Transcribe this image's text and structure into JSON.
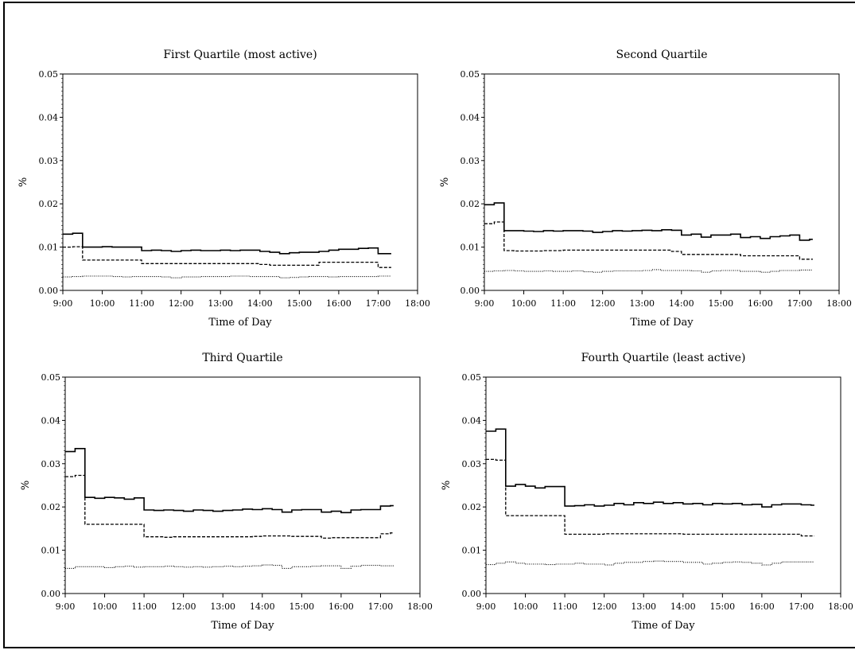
{
  "chart_data": [
    {
      "type": "line",
      "title": "First Quartile (most active)",
      "xlabel": "Time of Day",
      "ylabel": "%",
      "xlim": [
        "9:00",
        "18:00"
      ],
      "ylim": [
        0,
        0.05
      ],
      "x_ticks": [
        "9:00",
        "10:00",
        "11:00",
        "12:00",
        "13:00",
        "14:00",
        "15:00",
        "16:00",
        "17:00",
        "18:00"
      ],
      "y_ticks": [
        "0.00",
        "0.01",
        "0.02",
        "0.03",
        "0.04",
        "0.05"
      ],
      "x_values_hours": [
        9.0,
        9.25,
        9.5,
        9.75,
        10.0,
        10.25,
        10.5,
        10.75,
        11.0,
        11.25,
        11.5,
        11.75,
        12.0,
        12.25,
        12.5,
        12.75,
        13.0,
        13.25,
        13.5,
        13.75,
        14.0,
        14.25,
        14.5,
        14.75,
        15.0,
        15.25,
        15.5,
        15.75,
        16.0,
        16.25,
        16.5,
        16.75,
        17.0,
        17.25
      ],
      "series": [
        {
          "style": "solid",
          "values": [
            0.013,
            0.0132,
            0.01,
            0.01,
            0.0101,
            0.01,
            0.01,
            0.01,
            0.0092,
            0.0093,
            0.0092,
            0.009,
            0.0092,
            0.0093,
            0.0092,
            0.0092,
            0.0093,
            0.0092,
            0.0093,
            0.0093,
            0.009,
            0.0088,
            0.0085,
            0.0087,
            0.0088,
            0.0088,
            0.009,
            0.0093,
            0.0095,
            0.0095,
            0.0097,
            0.0098,
            0.0085,
            0.0085
          ]
        },
        {
          "style": "dashed",
          "values": [
            0.01,
            0.0101,
            0.007,
            0.007,
            0.007,
            0.007,
            0.007,
            0.007,
            0.0062,
            0.0062,
            0.0062,
            0.0062,
            0.0062,
            0.0062,
            0.0062,
            0.0062,
            0.0062,
            0.0062,
            0.0062,
            0.0062,
            0.006,
            0.0058,
            0.0058,
            0.0058,
            0.0058,
            0.0058,
            0.0065,
            0.0065,
            0.0065,
            0.0065,
            0.0065,
            0.0065,
            0.0053,
            0.0053
          ]
        },
        {
          "style": "dotted",
          "values": [
            0.0031,
            0.0032,
            0.0033,
            0.0033,
            0.0033,
            0.0032,
            0.0031,
            0.0032,
            0.0032,
            0.0032,
            0.0031,
            0.0029,
            0.0031,
            0.0031,
            0.0032,
            0.0032,
            0.0032,
            0.0033,
            0.0033,
            0.0032,
            0.0032,
            0.0032,
            0.0029,
            0.003,
            0.0031,
            0.0032,
            0.0032,
            0.0031,
            0.0032,
            0.0032,
            0.0032,
            0.0032,
            0.0033,
            0.0033
          ]
        }
      ]
    },
    {
      "type": "line",
      "title": "Second Quartile",
      "xlabel": "Time of Day",
      "ylabel": "%",
      "xlim": [
        "9:00",
        "18:00"
      ],
      "ylim": [
        0,
        0.05
      ],
      "x_ticks": [
        "9:00",
        "10:00",
        "11:00",
        "12:00",
        "13:00",
        "14:00",
        "15:00",
        "16:00",
        "17:00",
        "18:00"
      ],
      "y_ticks": [
        "0.00",
        "0.01",
        "0.02",
        "0.03",
        "0.04",
        "0.05"
      ],
      "x_values_hours": [
        9.0,
        9.25,
        9.5,
        9.75,
        10.0,
        10.25,
        10.5,
        10.75,
        11.0,
        11.25,
        11.5,
        11.75,
        12.0,
        12.25,
        12.5,
        12.75,
        13.0,
        13.25,
        13.5,
        13.75,
        14.0,
        14.25,
        14.5,
        14.75,
        15.0,
        15.25,
        15.5,
        15.75,
        16.0,
        16.25,
        16.5,
        16.75,
        17.0,
        17.25
      ],
      "series": [
        {
          "style": "solid",
          "values": [
            0.0198,
            0.0202,
            0.0138,
            0.0138,
            0.0137,
            0.0136,
            0.0138,
            0.0137,
            0.0138,
            0.0138,
            0.0137,
            0.0134,
            0.0136,
            0.0138,
            0.0137,
            0.0138,
            0.0139,
            0.0138,
            0.014,
            0.0139,
            0.0128,
            0.013,
            0.0123,
            0.0128,
            0.0128,
            0.013,
            0.0122,
            0.0124,
            0.012,
            0.0124,
            0.0126,
            0.0128,
            0.0116,
            0.0118
          ]
        },
        {
          "style": "dashed",
          "values": [
            0.0154,
            0.0158,
            0.0092,
            0.0091,
            0.0091,
            0.0091,
            0.0092,
            0.0092,
            0.0093,
            0.0093,
            0.0093,
            0.0093,
            0.0093,
            0.0093,
            0.0093,
            0.0093,
            0.0093,
            0.0093,
            0.0093,
            0.009,
            0.0083,
            0.0083,
            0.0083,
            0.0083,
            0.0083,
            0.0083,
            0.008,
            0.008,
            0.008,
            0.008,
            0.008,
            0.008,
            0.0072,
            0.0072
          ]
        },
        {
          "style": "dotted",
          "values": [
            0.0044,
            0.0045,
            0.0046,
            0.0045,
            0.0044,
            0.0044,
            0.0045,
            0.0044,
            0.0044,
            0.0045,
            0.0043,
            0.0042,
            0.0044,
            0.0045,
            0.0045,
            0.0045,
            0.0046,
            0.0048,
            0.0046,
            0.0046,
            0.0046,
            0.0045,
            0.0042,
            0.0045,
            0.0046,
            0.0046,
            0.0044,
            0.0044,
            0.0042,
            0.0044,
            0.0046,
            0.0046,
            0.0047,
            0.0047
          ]
        }
      ]
    },
    {
      "type": "line",
      "title": "Third Quartile",
      "xlabel": "Time of Day",
      "ylabel": "%",
      "xlim": [
        "9:00",
        "18:00"
      ],
      "ylim": [
        0,
        0.05
      ],
      "x_ticks": [
        "9:00",
        "10:00",
        "11:00",
        "12:00",
        "13:00",
        "14:00",
        "15:00",
        "16:00",
        "17:00",
        "18:00"
      ],
      "y_ticks": [
        "0.00",
        "0.01",
        "0.02",
        "0.03",
        "0.04",
        "0.05"
      ],
      "x_values_hours": [
        9.0,
        9.25,
        9.5,
        9.75,
        10.0,
        10.25,
        10.5,
        10.75,
        11.0,
        11.25,
        11.5,
        11.75,
        12.0,
        12.25,
        12.5,
        12.75,
        13.0,
        13.25,
        13.5,
        13.75,
        14.0,
        14.25,
        14.5,
        14.75,
        15.0,
        15.25,
        15.5,
        15.75,
        16.0,
        16.25,
        16.5,
        16.75,
        17.0,
        17.25
      ],
      "series": [
        {
          "style": "solid",
          "values": [
            0.0328,
            0.0335,
            0.0222,
            0.022,
            0.0222,
            0.0221,
            0.0218,
            0.0221,
            0.0193,
            0.0192,
            0.0193,
            0.0192,
            0.019,
            0.0193,
            0.0192,
            0.019,
            0.0192,
            0.0193,
            0.0195,
            0.0194,
            0.0196,
            0.0194,
            0.0188,
            0.0193,
            0.0194,
            0.0194,
            0.0188,
            0.019,
            0.0187,
            0.0193,
            0.0194,
            0.0194,
            0.0202,
            0.0203
          ]
        },
        {
          "style": "dashed",
          "values": [
            0.027,
            0.0273,
            0.016,
            0.016,
            0.016,
            0.016,
            0.016,
            0.016,
            0.0131,
            0.0131,
            0.013,
            0.0131,
            0.0131,
            0.0131,
            0.0131,
            0.0131,
            0.0131,
            0.0131,
            0.0131,
            0.0132,
            0.0133,
            0.0133,
            0.0133,
            0.0132,
            0.0132,
            0.0132,
            0.0128,
            0.0129,
            0.0129,
            0.0129,
            0.0129,
            0.0129,
            0.0138,
            0.014
          ]
        },
        {
          "style": "dotted",
          "values": [
            0.0058,
            0.0062,
            0.0062,
            0.0062,
            0.006,
            0.0062,
            0.0063,
            0.0061,
            0.0062,
            0.0062,
            0.0063,
            0.0062,
            0.0061,
            0.0062,
            0.0061,
            0.0062,
            0.0063,
            0.0062,
            0.0063,
            0.0064,
            0.0066,
            0.0065,
            0.0058,
            0.0062,
            0.0062,
            0.0063,
            0.0064,
            0.0064,
            0.0058,
            0.0063,
            0.0065,
            0.0065,
            0.0064,
            0.0064
          ]
        }
      ]
    },
    {
      "type": "line",
      "title": "Fourth Quartile (least active)",
      "xlabel": "Time of Day",
      "ylabel": "%",
      "xlim": [
        "9:00",
        "18:00"
      ],
      "ylim": [
        0,
        0.05
      ],
      "x_ticks": [
        "9:00",
        "10:00",
        "11:00",
        "12:00",
        "13:00",
        "14:00",
        "15:00",
        "16:00",
        "17:00",
        "18:00"
      ],
      "y_ticks": [
        "0.00",
        "0.01",
        "0.02",
        "0.03",
        "0.04",
        "0.05"
      ],
      "x_values_hours": [
        9.0,
        9.25,
        9.5,
        9.75,
        10.0,
        10.25,
        10.5,
        10.75,
        11.0,
        11.25,
        11.5,
        11.75,
        12.0,
        12.25,
        12.5,
        12.75,
        13.0,
        13.25,
        13.5,
        13.75,
        14.0,
        14.25,
        14.5,
        14.75,
        15.0,
        15.25,
        15.5,
        15.75,
        16.0,
        16.25,
        16.5,
        16.75,
        17.0,
        17.25
      ],
      "series": [
        {
          "style": "solid",
          "values": [
            0.0375,
            0.038,
            0.0248,
            0.0252,
            0.0248,
            0.0244,
            0.0247,
            0.0247,
            0.0202,
            0.0203,
            0.0205,
            0.0202,
            0.0204,
            0.0208,
            0.0205,
            0.021,
            0.0208,
            0.0211,
            0.0208,
            0.021,
            0.0207,
            0.0208,
            0.0205,
            0.0208,
            0.0207,
            0.0208,
            0.0205,
            0.0206,
            0.02,
            0.0205,
            0.0207,
            0.0207,
            0.0205,
            0.0204
          ]
        },
        {
          "style": "dashed",
          "values": [
            0.031,
            0.0308,
            0.018,
            0.018,
            0.018,
            0.018,
            0.018,
            0.018,
            0.0137,
            0.0137,
            0.0137,
            0.0137,
            0.0138,
            0.0138,
            0.0138,
            0.0138,
            0.0138,
            0.0138,
            0.0138,
            0.0138,
            0.0137,
            0.0137,
            0.0137,
            0.0137,
            0.0137,
            0.0137,
            0.0137,
            0.0137,
            0.0137,
            0.0137,
            0.0137,
            0.0137,
            0.0133,
            0.0133
          ]
        },
        {
          "style": "dotted",
          "values": [
            0.0067,
            0.007,
            0.0073,
            0.007,
            0.0068,
            0.0068,
            0.0067,
            0.0068,
            0.0068,
            0.007,
            0.0068,
            0.0068,
            0.0066,
            0.007,
            0.0072,
            0.0072,
            0.0074,
            0.0075,
            0.0074,
            0.0074,
            0.0072,
            0.0072,
            0.0068,
            0.007,
            0.0072,
            0.0073,
            0.0072,
            0.007,
            0.0066,
            0.007,
            0.0073,
            0.0073,
            0.0073,
            0.0073
          ]
        }
      ]
    }
  ]
}
